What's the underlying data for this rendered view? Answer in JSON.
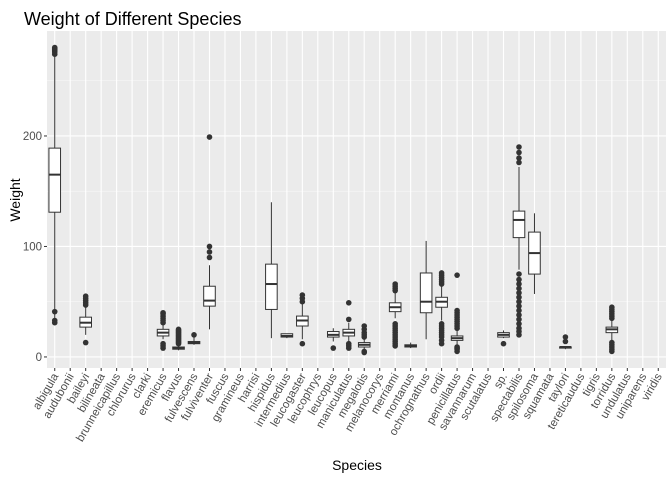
{
  "chart_data": {
    "type": "boxplot",
    "title": "Weight of Different Species",
    "xlabel": "Species",
    "ylabel": "Weight",
    "ylim": [
      -10,
      295
    ],
    "yticks": [
      0,
      100,
      200
    ],
    "grid": true,
    "legend": "none",
    "colors": {
      "panel": "#ebebeb",
      "grid_major": "#ffffff",
      "box_fill": "#ffffff",
      "box_line": "#333333",
      "outlier": "#333333"
    },
    "categories": [
      "albigula",
      "audubonii",
      "baileyi",
      "bilineata",
      "brunneicapillus",
      "chlorurus",
      "clarki",
      "eremicus",
      "flavus",
      "fulvescens",
      "fulviventer",
      "fuscus",
      "gramineus",
      "harrisi",
      "hispidus",
      "intermedius",
      "leucogaster",
      "leucophrys",
      "leucopus",
      "maniculatus",
      "megalotis",
      "melanocorys",
      "merriami",
      "montanus",
      "ochrognathus",
      "ordii",
      "penicillatus",
      "savannarum",
      "scutalatus",
      "sp.",
      "spectabilis",
      "spilosoma",
      "squamata",
      "taylori",
      "tereticaudus",
      "tigris",
      "torridus",
      "undulatus",
      "uniparens",
      "viridis"
    ],
    "boxes": [
      {
        "category": "albigula",
        "lower_whisker": 30,
        "q1": 131,
        "median": 165,
        "q3": 189,
        "upper_whisker": 274,
        "outliers": [
          31,
          33,
          41,
          274,
          276,
          277,
          278,
          279,
          280
        ]
      },
      {
        "category": "baileyi",
        "lower_whisker": 20,
        "q1": 27,
        "median": 31,
        "q3": 36,
        "upper_whisker": 45,
        "outliers": [
          13,
          47,
          49,
          51,
          53,
          55
        ]
      },
      {
        "category": "eremicus",
        "lower_whisker": 16,
        "q1": 19,
        "median": 22,
        "q3": 25,
        "upper_whisker": 30,
        "outliers": [
          8,
          10,
          12,
          31,
          33,
          35,
          37,
          39,
          40
        ]
      },
      {
        "category": "flavus",
        "lower_whisker": 6,
        "q1": 7,
        "median": 8,
        "q3": 9,
        "upper_whisker": 11,
        "outliers": [
          12,
          13,
          14,
          15,
          16,
          17,
          18,
          19,
          20,
          21,
          22,
          23,
          24,
          25
        ]
      },
      {
        "category": "fulvescens",
        "lower_whisker": 11,
        "q1": 12,
        "median": 13,
        "q3": 14,
        "upper_whisker": 18,
        "outliers": [
          20
        ]
      },
      {
        "category": "fulviventer",
        "lower_whisker": 25,
        "q1": 46,
        "median": 51,
        "q3": 64,
        "upper_whisker": 83,
        "outliers": [
          90,
          95,
          100,
          199
        ]
      },
      {
        "category": "hispidus",
        "lower_whisker": 17,
        "q1": 43,
        "median": 66,
        "q3": 84,
        "upper_whisker": 140,
        "outliers": []
      },
      {
        "category": "intermedius",
        "lower_whisker": 17,
        "q1": 18,
        "median": 19,
        "q3": 21,
        "upper_whisker": 21,
        "outliers": []
      },
      {
        "category": "leucogaster",
        "lower_whisker": 16,
        "q1": 28,
        "median": 33,
        "q3": 37,
        "upper_whisker": 48,
        "outliers": [
          12,
          50,
          53,
          56
        ]
      },
      {
        "category": "leucopus",
        "lower_whisker": 14,
        "q1": 18,
        "median": 20,
        "q3": 23,
        "upper_whisker": 26,
        "outliers": [
          8
        ]
      },
      {
        "category": "maniculatus",
        "lower_whisker": 14,
        "q1": 19,
        "median": 22,
        "q3": 25,
        "upper_whisker": 31,
        "outliers": [
          8,
          10,
          12,
          34,
          49
        ]
      },
      {
        "category": "megalotis",
        "lower_whisker": 6,
        "q1": 9,
        "median": 11,
        "q3": 13,
        "upper_whisker": 16,
        "outliers": [
          4,
          5,
          18,
          20,
          22,
          25,
          28
        ]
      },
      {
        "category": "merriami",
        "lower_whisker": 35,
        "q1": 41,
        "median": 45,
        "q3": 49,
        "upper_whisker": 58,
        "outliers": [
          10,
          12,
          14,
          16,
          18,
          20,
          22,
          24,
          26,
          28,
          30,
          60,
          62,
          64,
          66
        ]
      },
      {
        "category": "montanus",
        "lower_whisker": 8,
        "q1": 9,
        "median": 10,
        "q3": 11,
        "upper_whisker": 13,
        "outliers": []
      },
      {
        "category": "ochrognathus",
        "lower_whisker": 16,
        "q1": 40,
        "median": 50,
        "q3": 76,
        "upper_whisker": 105,
        "outliers": []
      },
      {
        "category": "ordii",
        "lower_whisker": 33,
        "q1": 45,
        "median": 50,
        "q3": 54,
        "upper_whisker": 64,
        "outliers": [
          12,
          15,
          18,
          20,
          22,
          24,
          26,
          28,
          30,
          66,
          68,
          70,
          72,
          74,
          76
        ]
      },
      {
        "category": "penicillatus",
        "lower_whisker": 11,
        "q1": 15,
        "median": 17,
        "q3": 19,
        "upper_whisker": 24,
        "outliers": [
          5,
          7,
          8,
          9,
          26,
          28,
          30,
          32,
          34,
          36,
          38,
          40,
          42,
          74
        ]
      },
      {
        "category": "sp.",
        "lower_whisker": 17,
        "q1": 18,
        "median": 20,
        "q3": 22,
        "upper_whisker": 24,
        "outliers": [
          12
        ]
      },
      {
        "category": "spectabilis",
        "lower_whisker": 79,
        "q1": 108,
        "median": 124,
        "q3": 132,
        "upper_whisker": 172,
        "outliers": [
          20,
          23,
          26,
          30,
          34,
          38,
          42,
          46,
          50,
          54,
          58,
          62,
          66,
          70,
          75,
          176,
          180,
          185,
          190
        ]
      },
      {
        "category": "spilosoma",
        "lower_whisker": 57,
        "q1": 75,
        "median": 94,
        "q3": 113,
        "upper_whisker": 130,
        "outliers": []
      },
      {
        "category": "taylori",
        "lower_whisker": 7,
        "q1": 8,
        "median": 9,
        "q3": 9,
        "upper_whisker": 10,
        "outliers": [
          14,
          18
        ]
      },
      {
        "category": "torridus",
        "lower_whisker": 15,
        "q1": 22,
        "median": 25,
        "q3": 27,
        "upper_whisker": 33,
        "outliers": [
          5,
          7,
          9,
          11,
          13,
          35,
          37,
          39,
          41,
          43,
          45
        ]
      }
    ]
  }
}
